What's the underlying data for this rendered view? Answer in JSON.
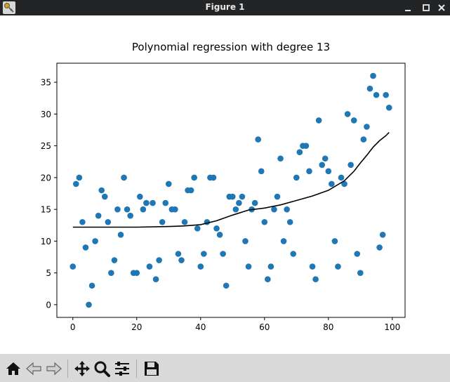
{
  "window": {
    "title": "Figure 1",
    "controls": [
      "minimize",
      "maximize",
      "close"
    ]
  },
  "chart_data": {
    "type": "scatter",
    "title": "Polynomial regression with degree 13",
    "xlabel": "",
    "ylabel": "",
    "xlim": [
      -5,
      104
    ],
    "ylim": [
      -2,
      38
    ],
    "xticks": [
      0,
      20,
      40,
      60,
      80,
      100
    ],
    "yticks": [
      0,
      5,
      10,
      15,
      20,
      25,
      30,
      35
    ],
    "grid": false,
    "legend": "none",
    "series": [
      {
        "name": "data",
        "kind": "scatter",
        "color": "#1f77b4",
        "x": [
          0,
          1,
          2,
          3,
          4,
          5,
          6,
          7,
          8,
          9,
          10,
          11,
          12,
          13,
          14,
          15,
          16,
          17,
          18,
          19,
          20,
          21,
          22,
          23,
          24,
          25,
          26,
          27,
          28,
          29,
          30,
          31,
          32,
          33,
          34,
          35,
          36,
          37,
          38,
          39,
          40,
          41,
          42,
          43,
          44,
          45,
          46,
          47,
          48,
          49,
          50,
          51,
          52,
          53,
          54,
          55,
          56,
          57,
          58,
          59,
          60,
          61,
          62,
          63,
          64,
          65,
          66,
          67,
          68,
          69,
          70,
          71,
          72,
          73,
          74,
          75,
          76,
          77,
          78,
          79,
          80,
          81,
          82,
          83,
          84,
          85,
          86,
          87,
          88,
          89,
          90,
          91,
          92,
          93,
          94,
          95,
          96,
          97,
          98,
          99
        ],
        "y": [
          6,
          19,
          20,
          13,
          9,
          0,
          3,
          10,
          14,
          18,
          17,
          13,
          5,
          7,
          15,
          11,
          20,
          15,
          14,
          5,
          5,
          17,
          15,
          16,
          6,
          16,
          4,
          7,
          13,
          16,
          19,
          15,
          15,
          8,
          7,
          13,
          18,
          18,
          20,
          12,
          6,
          8,
          13,
          20,
          20,
          12,
          11,
          8,
          3,
          17,
          17,
          15,
          16,
          17,
          10,
          6,
          15,
          16,
          26,
          21,
          13,
          4,
          6,
          15,
          17,
          23,
          10,
          15,
          13,
          8,
          20,
          24,
          25,
          25,
          21,
          6,
          4,
          29,
          22,
          23,
          21,
          19,
          10,
          6,
          20,
          19,
          30,
          22,
          29,
          8,
          5,
          26,
          28,
          34,
          36,
          33,
          9,
          11,
          33,
          31
        ]
      },
      {
        "name": "polynomial fit (degree 13)",
        "kind": "line",
        "color": "#000000",
        "x": [
          0,
          10,
          20,
          30,
          35,
          40,
          45,
          50,
          55,
          60,
          65,
          70,
          75,
          80,
          85,
          88,
          90,
          92,
          94,
          96,
          98,
          99
        ],
        "y": [
          12.2,
          12.2,
          12.2,
          12.3,
          12.4,
          12.6,
          13.2,
          14.1,
          14.9,
          15.2,
          15.7,
          16.4,
          17.1,
          18,
          19.5,
          21,
          22.3,
          23.5,
          24.8,
          25.8,
          26.6,
          27.1
        ]
      }
    ]
  },
  "toolbar": {
    "buttons": [
      {
        "name": "home-button",
        "icon": "home-icon",
        "tooltip": "Reset original view"
      },
      {
        "name": "back-button",
        "icon": "arrow-left-icon",
        "tooltip": "Back to previous view"
      },
      {
        "name": "forward-button",
        "icon": "arrow-right-icon",
        "tooltip": "Forward to next view"
      },
      {
        "name": "pan-button",
        "icon": "pan-icon",
        "tooltip": "Pan axes"
      },
      {
        "name": "zoom-button",
        "icon": "magnifier-icon",
        "tooltip": "Zoom to rectangle"
      },
      {
        "name": "configure-subplots-button",
        "icon": "sliders-icon",
        "tooltip": "Configure subplots"
      },
      {
        "name": "save-button",
        "icon": "floppy-disk-icon",
        "tooltip": "Save the figure"
      }
    ]
  }
}
